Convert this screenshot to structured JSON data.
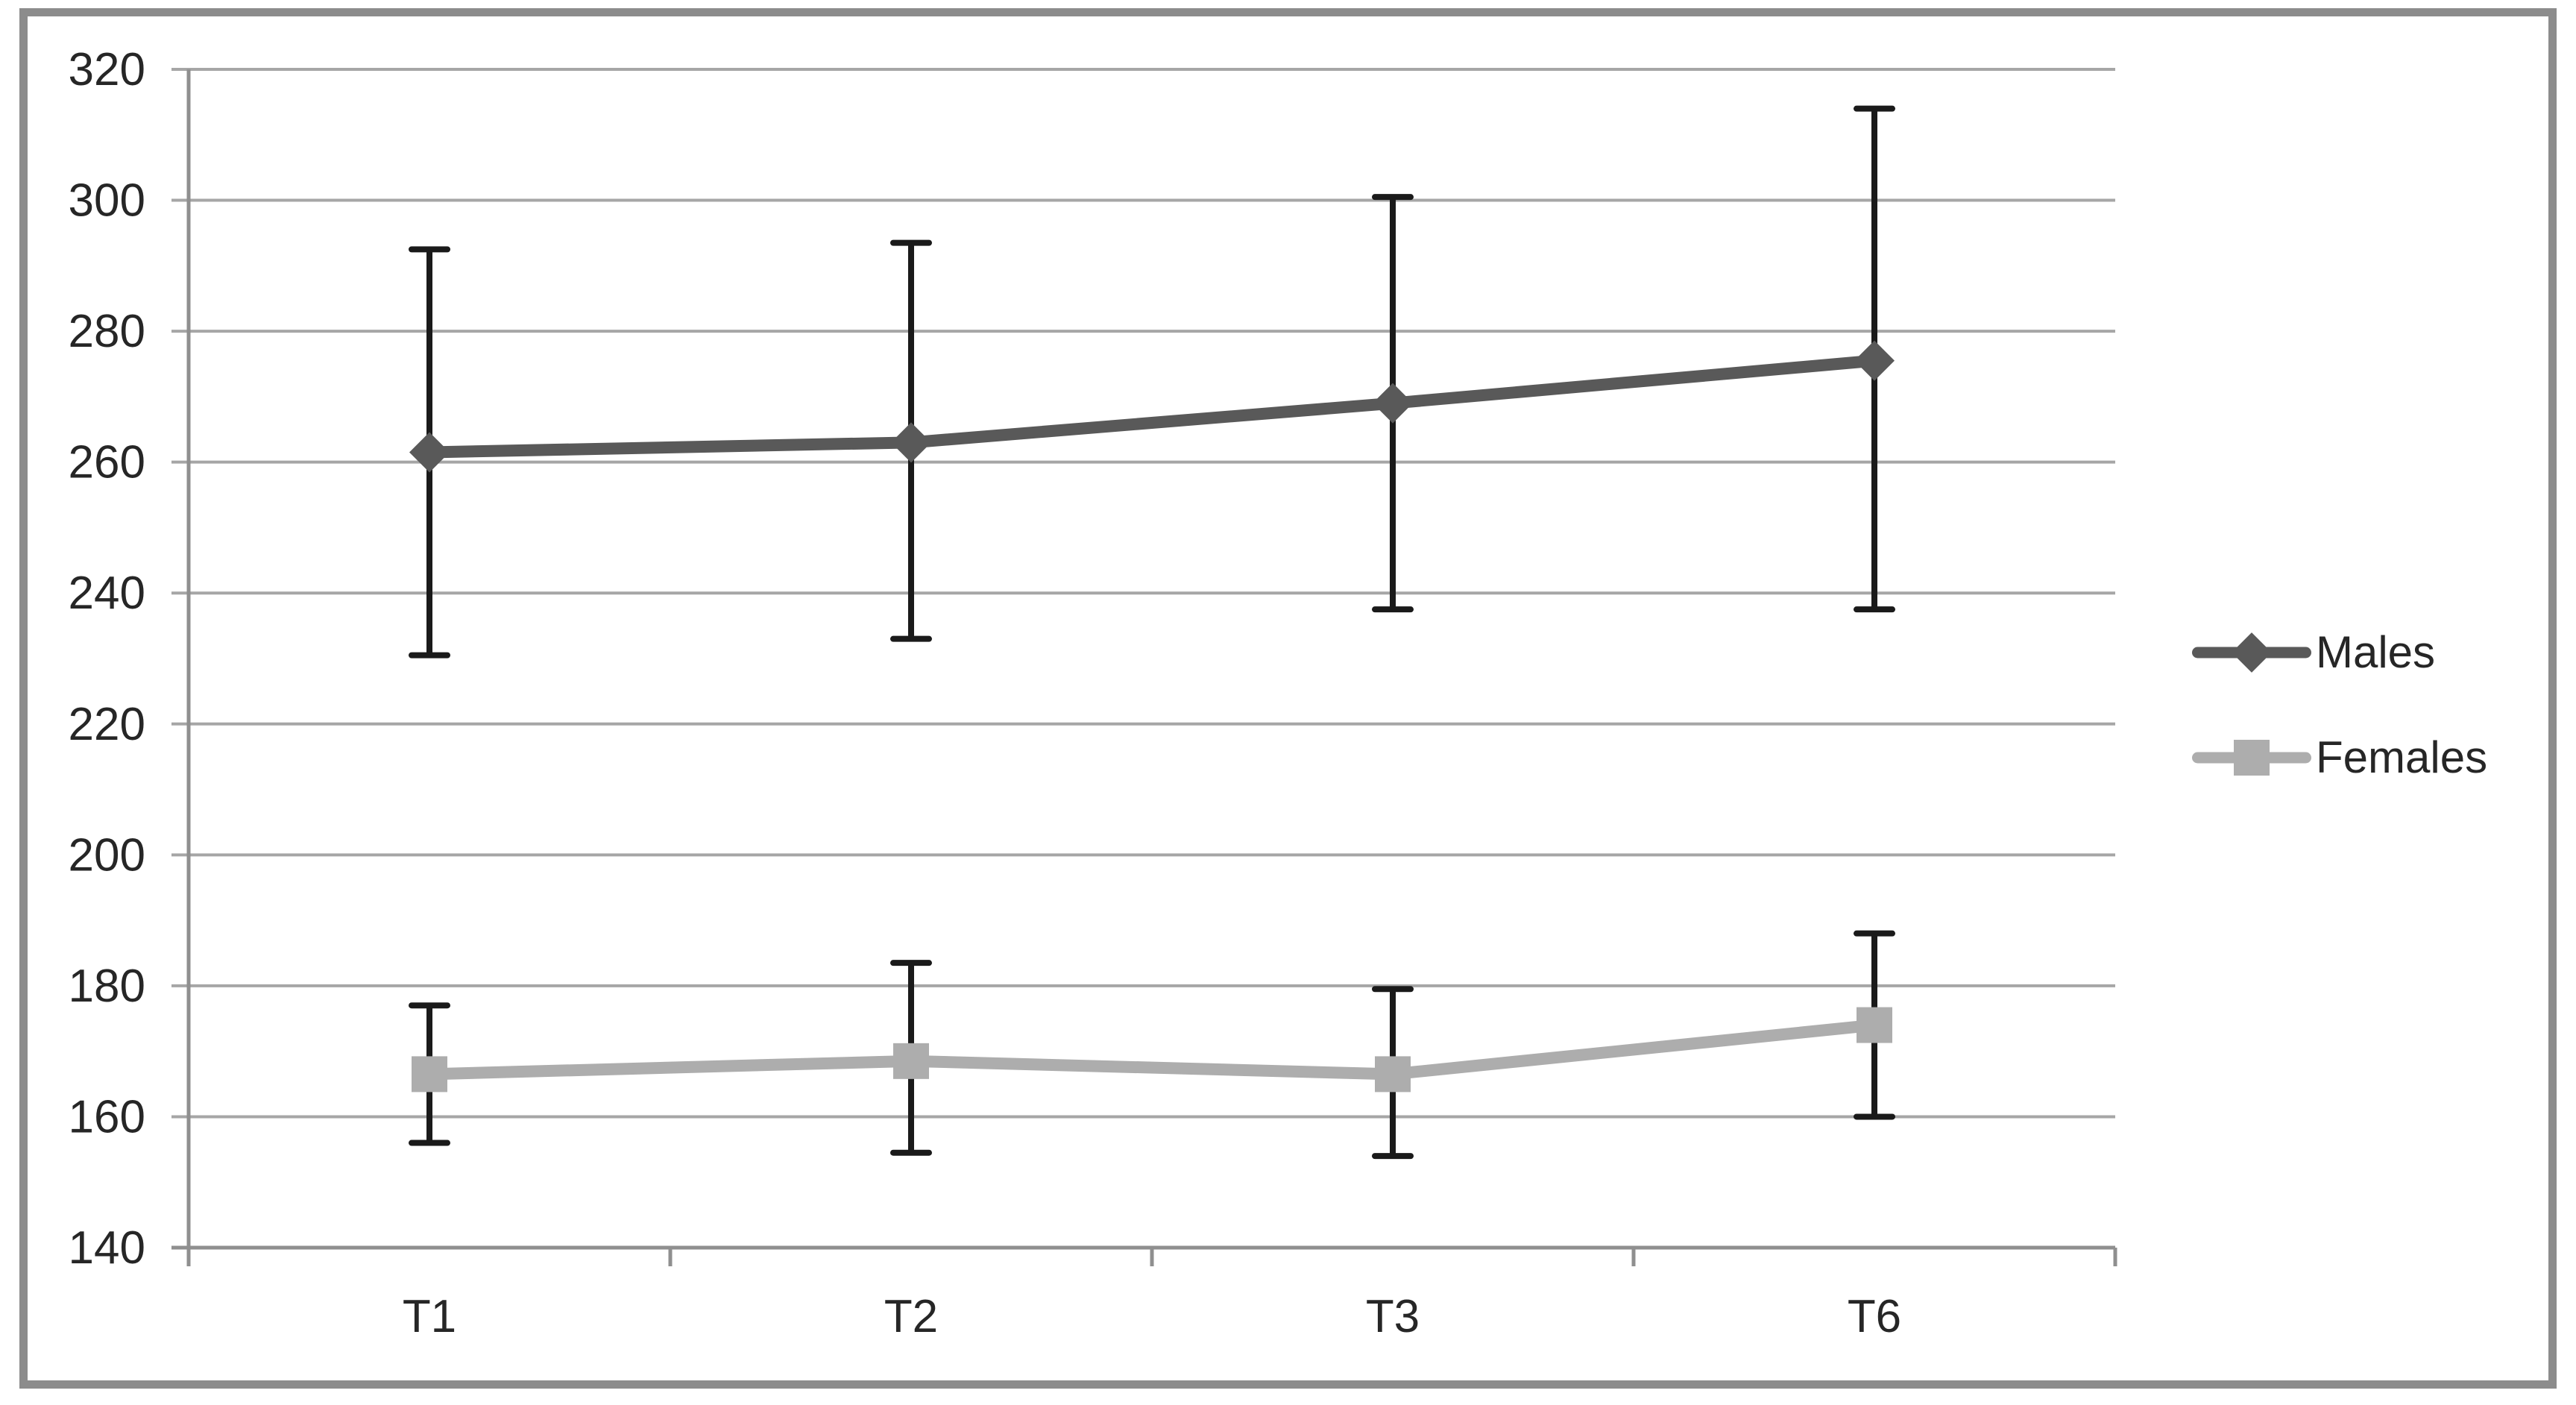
{
  "chart_data": {
    "type": "line",
    "title": "",
    "categories": [
      "T1",
      "T2",
      "T3",
      "T6"
    ],
    "series": [
      {
        "name": "Males",
        "color": "#595959",
        "marker": "diamond",
        "values": [
          261.5,
          263,
          269,
          275.5
        ],
        "error_low": [
          230.5,
          233,
          237.5,
          237.5
        ],
        "error_high": [
          292.5,
          293.5,
          300.5,
          314
        ]
      },
      {
        "name": "Females",
        "color": "#ADADAD",
        "marker": "square",
        "values": [
          166.5,
          168.5,
          166.5,
          174
        ],
        "error_low": [
          156,
          154.5,
          154,
          160
        ],
        "error_high": [
          177,
          183.5,
          179.5,
          188
        ]
      }
    ],
    "y_axis": {
      "min": 140,
      "max": 320,
      "step": 20,
      "tick_labels": [
        "140",
        "160",
        "180",
        "200",
        "220",
        "240",
        "260",
        "280",
        "300",
        "320"
      ]
    },
    "x_axis": {
      "tick_labels": [
        "T1",
        "T2",
        "T3",
        "T6"
      ]
    },
    "grid": true,
    "legend_position": "middle-right",
    "error_bars": true
  },
  "style": {
    "gridline_color": "#A6A6A6",
    "axis_color": "#8F8F8F",
    "error_bar_color": "#1A1A1A",
    "text_color": "#262626",
    "frame_border_color": "#8C8C8C",
    "background_color": "#FFFFFF"
  }
}
